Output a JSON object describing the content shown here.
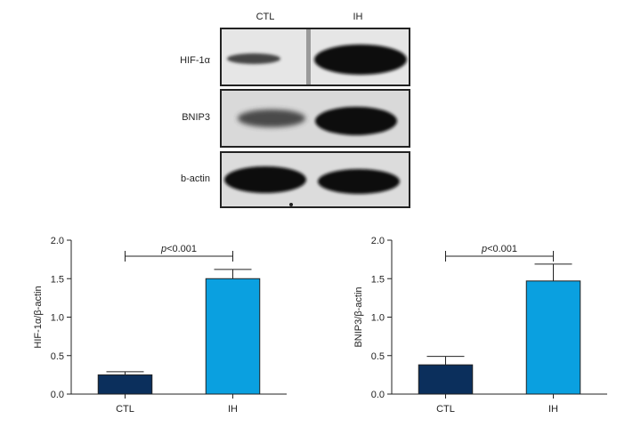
{
  "blot": {
    "lanes": [
      "CTL",
      "IH"
    ],
    "rows": [
      {
        "label": "HIF-1α",
        "levels": [
          0.25,
          1.5
        ]
      },
      {
        "label": "BNIP3",
        "levels": [
          0.38,
          1.47
        ]
      },
      {
        "label": "b-actin",
        "levels": [
          1.0,
          1.0
        ]
      }
    ],
    "colors": {
      "band": "#111111",
      "background": "#e4e4e4",
      "frame": "#222222"
    }
  },
  "chart_data": [
    {
      "type": "bar",
      "categories": [
        "CTL",
        "IH"
      ],
      "values": [
        0.25,
        1.5
      ],
      "errors": [
        0.04,
        0.12
      ],
      "colors": [
        "#0b2f5c",
        "#0aa0e0"
      ],
      "xlabel": "",
      "ylabel": "HIF-1α/β-actin",
      "ylim": [
        0,
        2.0
      ],
      "yticks": [
        0.0,
        0.5,
        1.0,
        1.5,
        2.0
      ],
      "ytick_labels": [
        "0.0",
        "0.5",
        "1.0",
        "1.5",
        "2.0"
      ],
      "annotation": {
        "italic": "p",
        "rest": "<0.001",
        "between": [
          "CTL",
          "IH"
        ]
      },
      "grid": false
    },
    {
      "type": "bar",
      "categories": [
        "CTL",
        "IH"
      ],
      "values": [
        0.38,
        1.47
      ],
      "errors": [
        0.11,
        0.22
      ],
      "colors": [
        "#0b2f5c",
        "#0aa0e0"
      ],
      "xlabel": "",
      "ylabel": "BNIP3/β-actin",
      "ylim": [
        0,
        2.0
      ],
      "yticks": [
        0.0,
        0.5,
        1.0,
        1.5,
        2.0
      ],
      "ytick_labels": [
        "0.0",
        "0.5",
        "1.0",
        "1.5",
        "2.0"
      ],
      "annotation": {
        "italic": "p",
        "rest": "<0.001",
        "between": [
          "CTL",
          "IH"
        ]
      },
      "grid": false
    }
  ]
}
